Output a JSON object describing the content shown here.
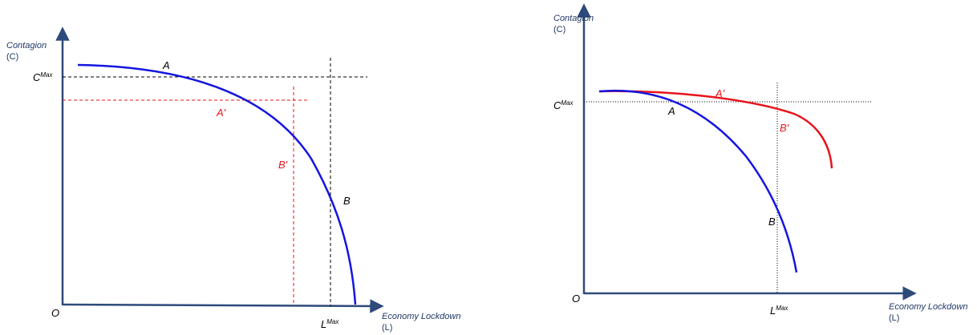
{
  "left": {
    "y_axis_label": "Contagion",
    "y_axis_abbr": "(C)",
    "x_axis_label": "Economy Lockdown",
    "x_axis_abbr": "(L)",
    "origin": "O",
    "c_max_base": "C",
    "c_max_sup": "Max",
    "l_max_base": "L",
    "l_max_sup": "Max",
    "point_a": "A",
    "point_b": "B",
    "point_a_prime": "A'",
    "point_b_prime": "B'"
  },
  "right": {
    "y_axis_label": "Contagion",
    "y_axis_abbr": "(C)",
    "x_axis_label": "Economy Lockdown",
    "x_axis_abbr": "(L)",
    "origin": "O",
    "c_max_base": "C",
    "c_max_sup": "Max",
    "l_max_base": "L",
    "l_max_sup": "Max",
    "point_a": "A",
    "point_b": "B",
    "point_a_prime": "A'",
    "point_b_prime": "B'"
  },
  "colors": {
    "axis": "#2e4a7a",
    "blue_curve": "#1515e0",
    "red_curve": "#e8141b",
    "guide_black": "#000000",
    "guide_red": "#e8141b"
  }
}
